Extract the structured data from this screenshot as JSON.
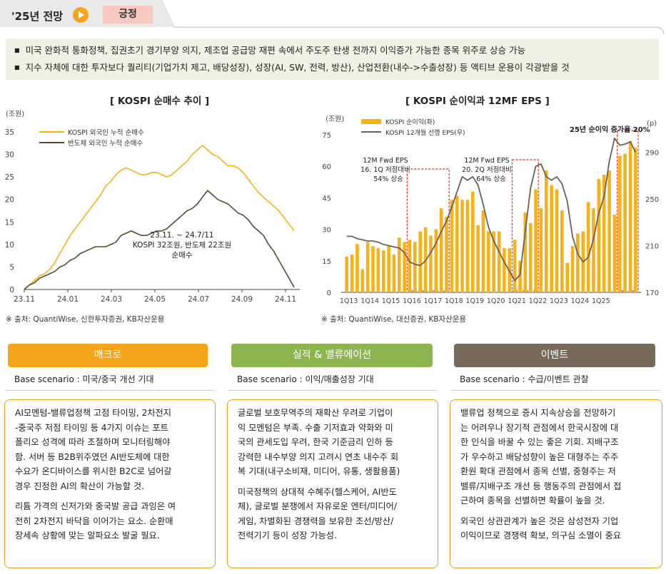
{
  "header": {
    "title": "'25년 전망",
    "badge": "긍정"
  },
  "summary": {
    "bullets": [
      "미국 완화적 통화정책, 집권초기 경기부양 의지, 제조업 공급망 재편 속에서 주도주 탄생 전까지 이익증가 가능한 종목 위주로 상승 가능",
      "지수 자체에 대한 투자보다 퀄리티(기업가치 제고, 배당성장), 성장(AI, SW, 전력, 방산), 산업전환(내수->수출성장) 등 액티브 운용이 각광받을 것"
    ]
  },
  "colors": {
    "kospi": "#f5b21b",
    "semi": "#5a4a32",
    "bar": "#f5b21b",
    "eps": "#6e6058",
    "dashed": "#e03020"
  },
  "chart1": {
    "title": "[ KOSPI 순매수 추이 ]",
    "unit": "(조원)",
    "source": "※ 출처: QuantiWise, 신한투자증권, KB자산운용",
    "annotation": [
      "23.11. ~ 24.7/11",
      "KOSPI 32조원, 반도체 22조원",
      "순매수"
    ]
  },
  "chart2": {
    "title": "[ KOSPI 순이익과 12MF EPS ]",
    "unit_left": "(조원)",
    "unit_right": "(p)",
    "source": "※ 출처: QuantiWise, 대신증권, KB자산운용",
    "annotations": {
      "a1": [
        "12M Fwd EPS",
        "16. 1Q 저점대비",
        "54% 상승"
      ],
      "a2": [
        "12M Fwd EPS",
        "20. 2Q 저점대비",
        "64% 상승"
      ],
      "a3": "25년 순이익 증가율 20%"
    }
  },
  "cards": [
    {
      "title": "매크로",
      "color": "#f5a51c",
      "scenario": "Base scenario : 미국/중국 개선 기대",
      "lines1": [
        "AI모멘텀-밸류업정책 고점 타이밍, 2차전지",
        "-중국주 저점 타이밍 등 4가지 이슈는 포트",
        "폴리오 성격에 따라 조절하며 모니터링해야",
        "함. 서버 등 B2B위주였던 AI반도체에 대한",
        "수요가 온디바이스를 위시한 B2C로 넘어갈",
        "경우 진정한 AI의 확산이 가능할 것."
      ],
      "lines2": [
        "리튬 가격의 신저가와 중국발 공급 과잉은 여",
        "전히 2차전지 바닥을 이어가는 요소. 순환매",
        "장세속 상황에 맞는 알파요소 발굴 필요."
      ]
    },
    {
      "title": "실적 & 밸류에이션",
      "color": "#8db550",
      "scenario": "Base scenario : 이익/매출성장 기대",
      "lines1": [
        "글로벌 보호무역주의 재확산 우려로 기업이",
        "익 모멘텀은 부족. 수출 기저효과 약화와 미",
        "국의 관세도입 우려, 한국 기준금리 인하 등",
        "강력한 내수부양 의지 고려시 연초 내수주 회",
        "복 기대(내구소비재, 미디어, 유통, 생활용품)"
      ],
      "lines2": [
        "미국정책의 상대적 수혜주(헬스케어, AI반도",
        "체), 글로벌 분쟁에서 자유로운 엔터/미디어/",
        "게임, 차별화된 경쟁력을 보유한 조선/방산/",
        "전력기기 등이 성장 가능성."
      ]
    },
    {
      "title": "이벤트",
      "color": "#786a5a",
      "scenario": "Base scenario : 수급/이벤트 관찰",
      "lines1": [
        "밸류업 정책으로 증시 지속상승을 전망하기",
        "는 어려우나 장기적 관점에서 한국시장에 대",
        "한 인식을 바꿀 수 있는 좋은 기회. 지배구조",
        "가 우수하고 배당성향이 높은 대형주는 주주",
        "환원 확대 관점에서 종목 선별, 중형주는 저",
        "밸류/지배구조 개선 등 행동주의 관점에서 접",
        "근하여 종목을 선별하면 확률이 높을 것."
      ],
      "lines2": [
        "외국인 상관관계가 높은 것은 삼성전자 기업",
        "이익이므로 경쟁력 확보, 의구심 소멸이 중요"
      ]
    }
  ],
  "chart_data": [
    {
      "type": "line",
      "title": "[ KOSPI 순매수 추이 ]",
      "ylabel": "(조원)",
      "ylim": [
        0,
        35
      ],
      "yticks": [
        "0",
        "5",
        "10",
        "15",
        "20",
        "25",
        "30",
        "35"
      ],
      "xticks": [
        "23.11",
        "24.01",
        "24.03",
        "24.05",
        "24.07",
        "24.09",
        "24.11"
      ],
      "legend": "top-left",
      "series": [
        {
          "name": "KOSPI 외국인 누적 순매수",
          "values": [
            0,
            1,
            2,
            3,
            3.5,
            4.5,
            6,
            8,
            10,
            12,
            13.5,
            15,
            16.5,
            18,
            19.5,
            21,
            23,
            24,
            25.5,
            26.5,
            27,
            26.5,
            26,
            25.5,
            25.5,
            26,
            26,
            25.5,
            25,
            25.5,
            26.5,
            27.5,
            28.5,
            30,
            31,
            32,
            31,
            30,
            29.5,
            28.5,
            27.5,
            27.5,
            27,
            26,
            24.5,
            23,
            21.5,
            20.5,
            19.5,
            18.5,
            17.5,
            16,
            14.5,
            13
          ]
        },
        {
          "name": "반도체 외국인 누적 순매수",
          "values": [
            0,
            1,
            1.5,
            2.5,
            3,
            3.5,
            4,
            5,
            5.5,
            6.5,
            7,
            8,
            8.5,
            9,
            9.5,
            9.5,
            9.5,
            10,
            10.5,
            12,
            12.5,
            13,
            12.5,
            12,
            12,
            12.5,
            13,
            13,
            13.5,
            14.5,
            15.5,
            16.5,
            17.5,
            18,
            19,
            20.5,
            22,
            21,
            20,
            19.5,
            19,
            18,
            17,
            16.5,
            15.5,
            14,
            13,
            12,
            10,
            8.5,
            6.5,
            4.5,
            2.5,
            0.5
          ]
        }
      ]
    },
    {
      "type": "bar",
      "title": "[ KOSPI 순이익과 12MF EPS ]",
      "ylabel": "(조원)",
      "y2label": "(p)",
      "ylim": [
        0,
        75
      ],
      "y2lim": [
        170,
        305
      ],
      "yticks": [
        "0",
        "15",
        "30",
        "45",
        "60",
        "75"
      ],
      "y2ticks": [
        "170",
        "210",
        "250",
        "290"
      ],
      "xticks": [
        "1Q13",
        "1Q14",
        "1Q15",
        "1Q16",
        "1Q17",
        "1Q18",
        "1Q19",
        "1Q20",
        "1Q21",
        "1Q22",
        "1Q23",
        "1Q24",
        "1Q25"
      ],
      "legend": "top-left",
      "series": [
        {
          "name": "KOSPI 순이익(좌)",
          "values": [
            17,
            18,
            23,
            11,
            24,
            22,
            21,
            20,
            22,
            18,
            26,
            24,
            25,
            24,
            29,
            31,
            27,
            30,
            40,
            36,
            44,
            46,
            44,
            44,
            48,
            32,
            39,
            29,
            29,
            29,
            21,
            21,
            25,
            15,
            38,
            33,
            49,
            40,
            58,
            51,
            49,
            39,
            14,
            22,
            28,
            29,
            43,
            40,
            54,
            56,
            58,
            37,
            65,
            66,
            72,
            69
          ]
        },
        {
          "name": "KOSPI 12개월 선행 EPS(우)",
          "values": [
            218,
            218,
            216,
            215,
            214,
            214,
            213,
            211,
            210,
            209,
            208,
            204,
            196,
            194,
            193,
            197,
            204,
            212,
            222,
            231,
            243,
            256,
            269,
            266,
            269,
            262,
            245,
            226,
            214,
            205,
            196,
            188,
            180,
            185,
            222,
            259,
            278,
            280,
            269,
            266,
            269,
            263,
            248,
            218,
            203,
            196,
            200,
            216,
            238,
            252,
            282,
            302,
            296,
            297,
            299,
            290
          ]
        }
      ]
    }
  ]
}
